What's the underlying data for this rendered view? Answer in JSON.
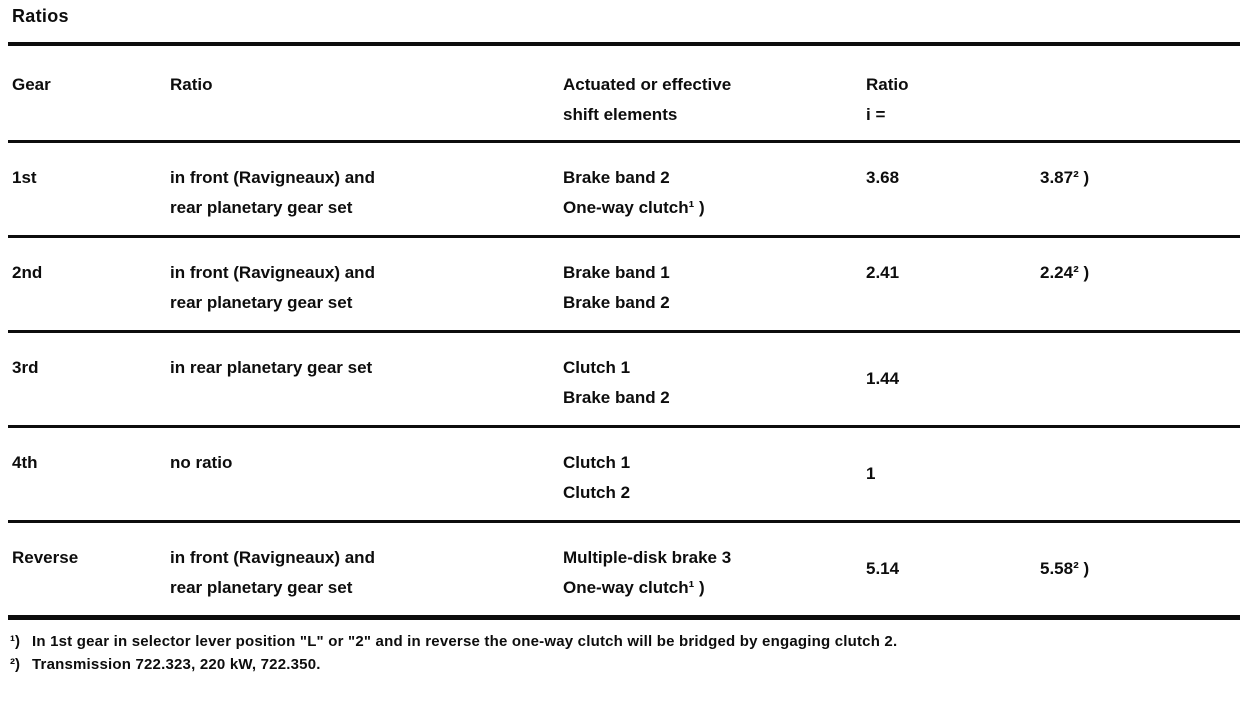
{
  "title": "Ratios",
  "table": {
    "headers": {
      "gear": "Gear",
      "ratio_desc": "Ratio",
      "shift_line1": "Actuated or effective",
      "shift_line2": "shift elements",
      "ratio_line1": "Ratio",
      "ratio_line2": "i ="
    },
    "rows": [
      {
        "gear": "1st",
        "desc1": "in front (Ravigneaux) and",
        "desc2": "rear planetary gear set",
        "el1": "Brake band 2",
        "el2": "One-way clutch¹ )",
        "ratio": "3.68",
        "ratio_alt": "3.87² )"
      },
      {
        "gear": "2nd",
        "desc1": "in front (Ravigneaux) and",
        "desc2": "rear planetary gear set",
        "el1": "Brake band 1",
        "el2": "Brake band 2",
        "ratio": "2.41",
        "ratio_alt": "2.24² )"
      },
      {
        "gear": "3rd",
        "desc1": "in rear planetary gear set",
        "desc2": "",
        "el1": "Clutch 1",
        "el2": "Brake band 2",
        "ratio": "1.44",
        "ratio_alt": ""
      },
      {
        "gear": "4th",
        "desc1": "no ratio",
        "desc2": "",
        "el1": "Clutch 1",
        "el2": "Clutch 2",
        "ratio": "1",
        "ratio_alt": ""
      },
      {
        "gear": "Reverse",
        "desc1": "in front (Ravigneaux) and",
        "desc2": "rear planetary gear set",
        "el1": "Multiple-disk brake 3",
        "el2": "One-way clutch¹ )",
        "ratio": "5.14",
        "ratio_alt": "5.58² )"
      }
    ]
  },
  "footnotes": [
    {
      "marker": "¹)",
      "text": "In 1st gear in selector lever position \"L\" or \"2\" and in reverse the one-way clutch will be bridged by engaging clutch 2."
    },
    {
      "marker": "²)",
      "text": "Transmission 722.323, 220 kW, 722.350."
    }
  ]
}
